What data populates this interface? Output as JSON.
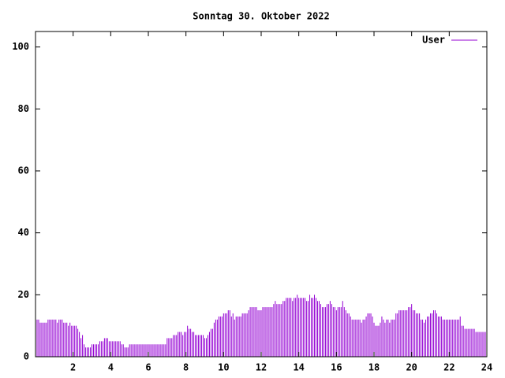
{
  "chart_data": {
    "type": "impulses",
    "title": "Sonntag 30. Oktober 2022",
    "xlim": [
      0,
      24
    ],
    "xticks": [
      2,
      4,
      6,
      8,
      10,
      12,
      14,
      16,
      18,
      20,
      22,
      24
    ],
    "ylim": [
      0,
      105
    ],
    "yticks": [
      0,
      20,
      40,
      60,
      80,
      100
    ],
    "legend": "top-right",
    "series": [
      {
        "name": "User",
        "color": "#9400d3",
        "x": [
          0,
          0.083,
          0.167,
          0.25,
          0.333,
          0.417,
          0.5,
          0.583,
          0.667,
          0.75,
          0.833,
          0.917,
          1,
          1.083,
          1.167,
          1.25,
          1.333,
          1.417,
          1.5,
          1.583,
          1.667,
          1.75,
          1.833,
          1.917,
          2,
          2.083,
          2.167,
          2.25,
          2.333,
          2.417,
          2.5,
          2.583,
          2.667,
          2.75,
          2.833,
          2.917,
          3,
          3.083,
          3.167,
          3.25,
          3.333,
          3.417,
          3.5,
          3.583,
          3.667,
          3.75,
          3.833,
          3.917,
          4,
          4.083,
          4.167,
          4.25,
          4.333,
          4.417,
          4.5,
          4.583,
          4.667,
          4.75,
          4.833,
          4.917,
          5,
          5.083,
          5.167,
          5.25,
          5.333,
          5.417,
          5.5,
          5.583,
          5.667,
          5.75,
          5.833,
          5.917,
          6,
          6.083,
          6.167,
          6.25,
          6.333,
          6.417,
          6.5,
          6.583,
          6.667,
          6.75,
          6.833,
          6.917,
          7,
          7.083,
          7.167,
          7.25,
          7.333,
          7.417,
          7.5,
          7.583,
          7.667,
          7.75,
          7.833,
          7.917,
          8,
          8.083,
          8.167,
          8.25,
          8.333,
          8.417,
          8.5,
          8.583,
          8.667,
          8.75,
          8.833,
          8.917,
          9,
          9.083,
          9.167,
          9.25,
          9.333,
          9.417,
          9.5,
          9.583,
          9.667,
          9.75,
          9.833,
          9.917,
          10,
          10.083,
          10.167,
          10.25,
          10.333,
          10.417,
          10.5,
          10.583,
          10.667,
          10.75,
          10.833,
          10.917,
          11,
          11.083,
          11.167,
          11.25,
          11.333,
          11.417,
          11.5,
          11.583,
          11.667,
          11.75,
          11.833,
          11.917,
          12,
          12.083,
          12.167,
          12.25,
          12.333,
          12.417,
          12.5,
          12.583,
          12.667,
          12.75,
          12.833,
          12.917,
          13,
          13.083,
          13.167,
          13.25,
          13.333,
          13.417,
          13.5,
          13.583,
          13.667,
          13.75,
          13.833,
          13.917,
          14,
          14.083,
          14.167,
          14.25,
          14.333,
          14.417,
          14.5,
          14.583,
          14.667,
          14.75,
          14.833,
          14.917,
          15,
          15.083,
          15.167,
          15.25,
          15.333,
          15.417,
          15.5,
          15.583,
          15.667,
          15.75,
          15.833,
          15.917,
          16,
          16.083,
          16.167,
          16.25,
          16.333,
          16.417,
          16.5,
          16.583,
          16.667,
          16.75,
          16.833,
          16.917,
          17,
          17.083,
          17.167,
          17.25,
          17.333,
          17.417,
          17.5,
          17.583,
          17.667,
          17.75,
          17.833,
          17.917,
          18,
          18.083,
          18.167,
          18.25,
          18.333,
          18.417,
          18.5,
          18.583,
          18.667,
          18.75,
          18.833,
          18.917,
          19,
          19.083,
          19.167,
          19.25,
          19.333,
          19.417,
          19.5,
          19.583,
          19.667,
          19.75,
          19.833,
          19.917,
          20,
          20.083,
          20.167,
          20.25,
          20.333,
          20.417,
          20.5,
          20.583,
          20.667,
          20.75,
          20.833,
          20.917,
          21,
          21.083,
          21.167,
          21.25,
          21.333,
          21.417,
          21.5,
          21.583,
          21.667,
          21.75,
          21.833,
          21.917,
          22,
          22.083,
          22.167,
          22.25,
          22.333,
          22.417,
          22.5,
          22.583,
          22.667,
          22.75,
          22.833,
          22.917,
          23,
          23.083,
          23.167,
          23.25,
          23.333,
          23.417,
          23.5,
          23.583,
          23.667,
          23.75,
          23.833,
          23.917
        ],
        "values": [
          12,
          12,
          12,
          11,
          11,
          11,
          11,
          11,
          12,
          12,
          12,
          12,
          12,
          12,
          11,
          12,
          12,
          12,
          11,
          11,
          11,
          10,
          11,
          10,
          10,
          10,
          10,
          9,
          8,
          6,
          7,
          4,
          3,
          3,
          3,
          3,
          4,
          4,
          4,
          4,
          4,
          5,
          5,
          5,
          6,
          6,
          6,
          5,
          5,
          5,
          5,
          5,
          5,
          5,
          5,
          4,
          4,
          3,
          3,
          3,
          4,
          4,
          4,
          4,
          4,
          4,
          4,
          4,
          4,
          4,
          4,
          4,
          4,
          4,
          4,
          4,
          4,
          4,
          4,
          4,
          4,
          4,
          4,
          4,
          6,
          6,
          6,
          6,
          7,
          7,
          7,
          8,
          8,
          8,
          7,
          8,
          8,
          10,
          9,
          9,
          8,
          8,
          7,
          7,
          7,
          7,
          7,
          7,
          6,
          6,
          7,
          8,
          9,
          9,
          11,
          12,
          12,
          13,
          13,
          13,
          14,
          14,
          14,
          15,
          15,
          13,
          14,
          12,
          13,
          13,
          13,
          13,
          14,
          14,
          14,
          14,
          15,
          16,
          16,
          16,
          16,
          16,
          15,
          15,
          15,
          16,
          16,
          16,
          16,
          16,
          16,
          16,
          17,
          18,
          17,
          17,
          17,
          17,
          18,
          18,
          19,
          19,
          19,
          19,
          18,
          19,
          19,
          20,
          19,
          19,
          19,
          19,
          19,
          18,
          18,
          20,
          19,
          19,
          20,
          19,
          18,
          18,
          17,
          16,
          16,
          16,
          17,
          17,
          18,
          17,
          16,
          16,
          15,
          16,
          16,
          16,
          18,
          16,
          15,
          14,
          14,
          13,
          12,
          12,
          12,
          12,
          12,
          12,
          11,
          12,
          12,
          13,
          14,
          14,
          14,
          13,
          11,
          10,
          10,
          10,
          11,
          13,
          12,
          11,
          12,
          12,
          11,
          12,
          12,
          12,
          14,
          14,
          15,
          15,
          15,
          15,
          15,
          15,
          16,
          16,
          17,
          15,
          15,
          14,
          14,
          14,
          12,
          12,
          11,
          12,
          13,
          13,
          14,
          14,
          15,
          15,
          14,
          13,
          13,
          13,
          12,
          12,
          12,
          12,
          12,
          12,
          12,
          12,
          12,
          12,
          12,
          13,
          10,
          10,
          9,
          9,
          9,
          9,
          9,
          9,
          9,
          8,
          8,
          8,
          8,
          8,
          8,
          8
        ]
      }
    ]
  }
}
